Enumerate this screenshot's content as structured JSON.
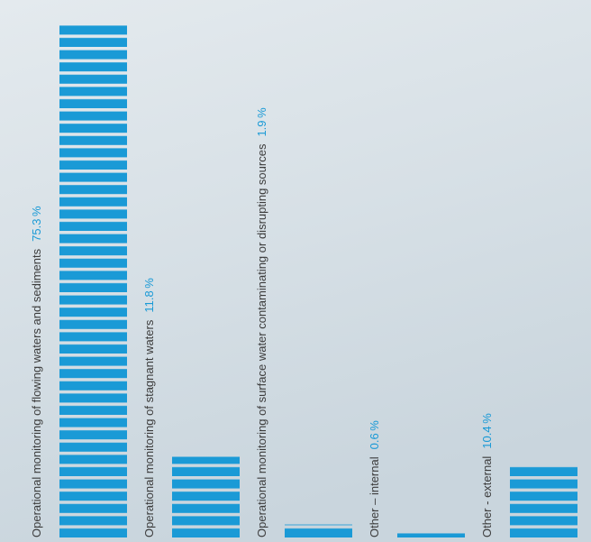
{
  "chart_data": {
    "type": "bar",
    "categories": [
      "Operational monitoring of flowing waters and sediments",
      "Operational monitoring of stagnant waters",
      "Operational monitoring of surface water contaminating or disrupting sources",
      "Other – internal",
      "Other - external"
    ],
    "values": [
      75.3,
      11.8,
      1.9,
      0.6,
      10.4
    ],
    "value_labels": [
      "75.3 %",
      "11.8 %",
      "1.9 %",
      "0.6 %",
      "10.4 %"
    ],
    "color": "#1a9ad6"
  }
}
